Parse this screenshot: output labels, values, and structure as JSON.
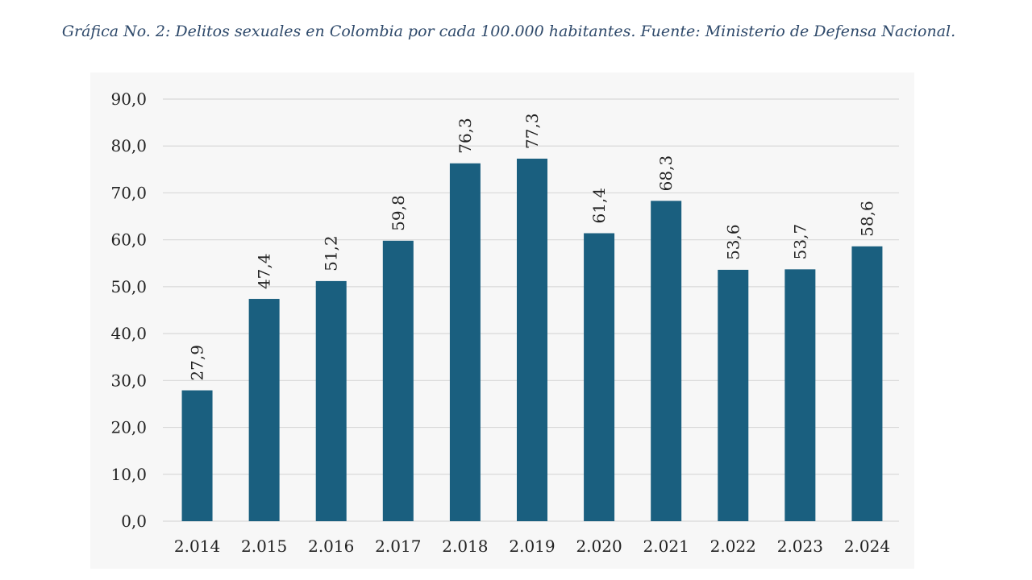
{
  "caption": "Gráfica No. 2: Delitos sexuales en Colombia por cada 100.000 habitantes. Fuente: Ministerio de Defensa Nacional.",
  "chart_data": {
    "type": "bar",
    "title": "Gráfica No. 2: Delitos sexuales en Colombia por cada 100.000 habitantes. Fuente: Ministerio de Defensa Nacional.",
    "xlabel": "",
    "ylabel": "",
    "categories": [
      "2.014",
      "2.015",
      "2.016",
      "2.017",
      "2.018",
      "2.019",
      "2.020",
      "2.021",
      "2.022",
      "2.023",
      "2.024"
    ],
    "values": [
      27.9,
      47.4,
      51.2,
      59.8,
      76.3,
      77.3,
      61.4,
      68.3,
      53.6,
      53.7,
      58.6
    ],
    "value_labels": [
      "27,9",
      "47,4",
      "51,2",
      "59,8",
      "76,3",
      "77,3",
      "61,4",
      "68,3",
      "53,6",
      "53,7",
      "58,6"
    ],
    "ylim": [
      0,
      90
    ],
    "yticks": [
      0,
      10,
      20,
      30,
      40,
      50,
      60,
      70,
      80,
      90
    ],
    "ytick_labels": [
      "0,0",
      "10,0",
      "20,0",
      "30,0",
      "40,0",
      "50,0",
      "60,0",
      "70,0",
      "80,0",
      "90,0"
    ],
    "grid": true,
    "legend": "none",
    "bar_color": "#1a5f7f",
    "grid_color": "#d9d9d9"
  }
}
